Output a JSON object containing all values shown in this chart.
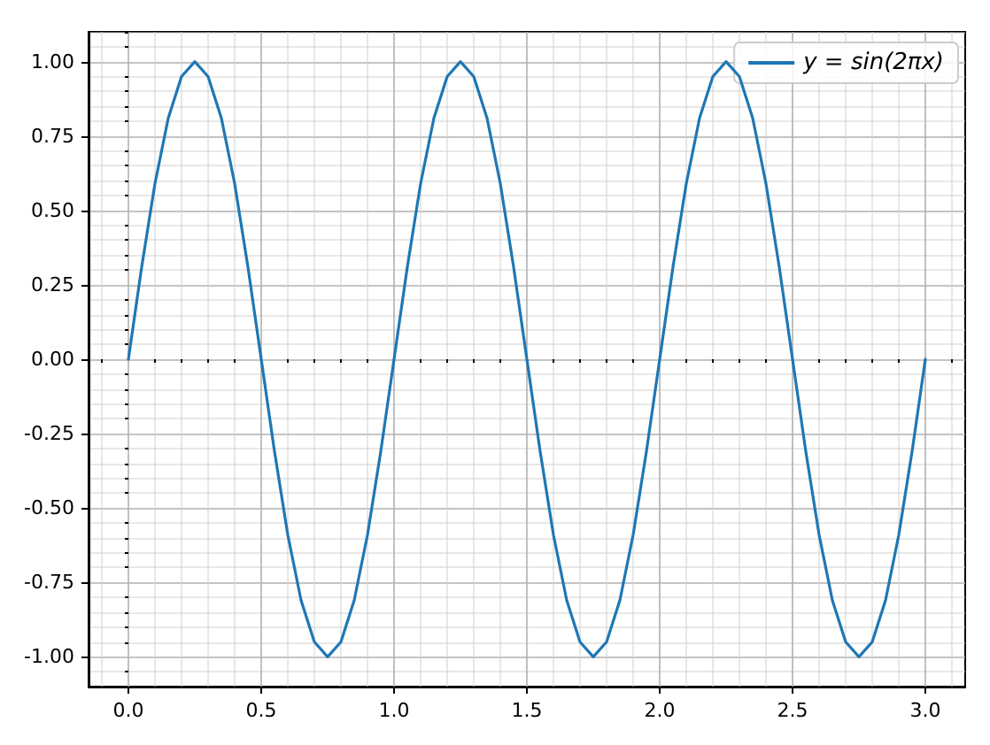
{
  "chart_data": {
    "type": "line",
    "x": [
      0,
      0.05,
      0.1,
      0.15,
      0.2,
      0.25,
      0.3,
      0.35,
      0.4,
      0.45,
      0.5,
      0.55,
      0.6,
      0.65,
      0.7,
      0.75,
      0.8,
      0.85,
      0.9,
      0.95,
      1,
      1.05,
      1.1,
      1.15,
      1.2,
      1.25,
      1.3,
      1.35,
      1.4,
      1.45,
      1.5,
      1.55,
      1.6,
      1.65,
      1.7,
      1.75,
      1.8,
      1.85,
      1.9,
      1.95,
      2,
      2.05,
      2.1,
      2.15,
      2.2,
      2.25,
      2.3,
      2.35,
      2.4,
      2.45,
      2.5,
      2.55,
      2.6,
      2.65,
      2.7,
      2.75,
      2.8,
      2.85,
      2.9,
      2.95,
      3
    ],
    "series": [
      {
        "name": "y = sin(2πx)",
        "color": "#1f77b4",
        "values": [
          0,
          0.31,
          0.59,
          0.81,
          0.95,
          1,
          0.95,
          0.81,
          0.59,
          0.31,
          0,
          -0.31,
          -0.59,
          -0.81,
          -0.95,
          -1,
          -0.95,
          -0.81,
          -0.59,
          -0.31,
          0,
          0.31,
          0.59,
          0.81,
          0.95,
          1,
          0.95,
          0.81,
          0.59,
          0.31,
          0,
          -0.31,
          -0.59,
          -0.81,
          -0.95,
          -1,
          -0.95,
          -0.81,
          -0.59,
          -0.31,
          0,
          0.31,
          0.59,
          0.81,
          0.95,
          1,
          0.95,
          0.81,
          0.59,
          0.31,
          0,
          -0.31,
          -0.59,
          -0.81,
          -0.95,
          -1,
          -0.95,
          -0.81,
          -0.59,
          -0.31,
          0
        ]
      }
    ],
    "xlim": [
      -0.15,
      3.15
    ],
    "xticks": [
      {
        "value": 0,
        "label": "0.0"
      },
      {
        "value": 0.5,
        "label": "0.5"
      },
      {
        "value": 1,
        "label": "1.0"
      },
      {
        "value": 1.5,
        "label": "1.5"
      },
      {
        "value": 2,
        "label": "2.0"
      },
      {
        "value": 2.5,
        "label": "2.5"
      },
      {
        "value": 3,
        "label": "3.0"
      }
    ],
    "ylim": [
      -1.1,
      1.1
    ],
    "yticks": [
      {
        "value": -1,
        "label": "-1.00"
      },
      {
        "value": -0.75,
        "label": "-0.75"
      },
      {
        "value": -0.5,
        "label": "-0.50"
      },
      {
        "value": -0.25,
        "label": "-0.25"
      },
      {
        "value": 0,
        "label": "0.00"
      },
      {
        "value": 0.25,
        "label": "0.25"
      },
      {
        "value": 0.5,
        "label": "0.50"
      },
      {
        "value": 0.75,
        "label": "0.75"
      },
      {
        "value": 1,
        "label": "1.00"
      }
    ],
    "grid": true,
    "legend": "top right",
    "marker": "none",
    "line_style": "solid"
  }
}
